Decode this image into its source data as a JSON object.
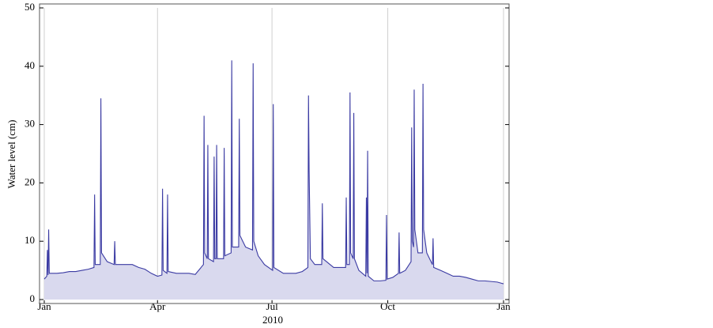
{
  "chart_data": {
    "type": "area",
    "y_label": "Water level (cm)",
    "x_label": "2010",
    "color": "#3b3ba3",
    "fill": "#d9d9ee",
    "xlim": [
      0,
      365
    ],
    "ylim": [
      0,
      50
    ],
    "xticks": [
      {
        "value": 0,
        "label": "Jan"
      },
      {
        "value": 90,
        "label": "Apr"
      },
      {
        "value": 181,
        "label": "Jul"
      },
      {
        "value": 273,
        "label": "Oct"
      },
      {
        "value": 365,
        "label": "Jan"
      }
    ],
    "yticks": [
      0,
      10,
      20,
      30,
      40,
      50
    ],
    "grid_x": true,
    "x": [
      0,
      2,
      2.5,
      3,
      3.5,
      4,
      10,
      15,
      20,
      25,
      30,
      35,
      39.5,
      40,
      40.5,
      44.5,
      45,
      45.5,
      50,
      55.5,
      56,
      56.5,
      60,
      65,
      70,
      75,
      80,
      85,
      90,
      93.5,
      94,
      94.5,
      97.5,
      98,
      98.5,
      105,
      110,
      115,
      120,
      126.5,
      127,
      127.5,
      129.5,
      130,
      130.5,
      134.5,
      135,
      135.5,
      136.5,
      137,
      137.5,
      142.5,
      143,
      143.5,
      148.5,
      149,
      149.5,
      154.5,
      155,
      155.5,
      160,
      165.5,
      166,
      166.5,
      170,
      175,
      181.5,
      182,
      182.5,
      190,
      195,
      200,
      205,
      209.5,
      210,
      210.5,
      211.5,
      215,
      220.5,
      221,
      221.5,
      230,
      235,
      239.5,
      240,
      240.5,
      242.5,
      243,
      243.5,
      245.5,
      246,
      246.5,
      250,
      255.5,
      256,
      256.5,
      257,
      257.5,
      262,
      267,
      271.5,
      272,
      272.5,
      277,
      281.5,
      282,
      282.5,
      287,
      291.5,
      292,
      292.5,
      293.5,
      294,
      294.5,
      297,
      300.5,
      301,
      301.5,
      304,
      308.5,
      309,
      309.5,
      315,
      320,
      325,
      330,
      335,
      340,
      345,
      350,
      355,
      360,
      365
    ],
    "values": [
      3.5,
      4,
      8.5,
      4.2,
      12,
      4.5,
      4.5,
      4.6,
      4.8,
      4.8,
      5,
      5.2,
      5.5,
      18,
      6,
      6,
      34.5,
      8,
      6.5,
      6,
      10,
      6,
      6,
      6,
      6,
      5.5,
      5.2,
      4.5,
      4,
      4.2,
      19,
      5,
      4.5,
      18,
      4.8,
      4.5,
      4.5,
      4.5,
      4.3,
      6,
      31.5,
      8,
      7,
      26.5,
      7,
      6.5,
      24.5,
      7,
      7,
      26.5,
      7,
      7,
      26,
      7.5,
      8,
      41,
      9,
      9,
      31,
      11,
      9,
      8.5,
      40.5,
      10,
      7.5,
      6,
      5,
      33.5,
      5.5,
      4.5,
      4.5,
      4.5,
      4.8,
      5.5,
      35,
      22,
      7,
      6,
      6,
      16.5,
      7,
      5.5,
      5.5,
      5.5,
      17.5,
      6,
      6,
      35.5,
      8,
      7,
      32,
      7,
      5,
      4,
      17.5,
      4.5,
      25.5,
      4,
      3.2,
      3.2,
      3.3,
      14.5,
      3.5,
      3.8,
      4.5,
      11.5,
      4.5,
      5,
      6.5,
      29.5,
      10,
      9,
      36,
      12,
      8,
      8,
      37,
      12,
      8,
      6,
      10.5,
      5.5,
      5,
      4.5,
      4,
      4,
      3.8,
      3.5,
      3.2,
      3.2,
      3.1,
      3,
      2.7
    ]
  }
}
